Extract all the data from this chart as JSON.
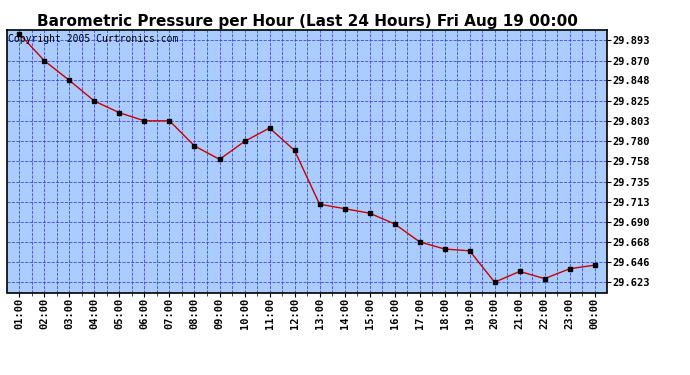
{
  "title": "Barometric Pressure per Hour (Last 24 Hours) Fri Aug 19 00:00",
  "copyright": "Copyright 2005 Curtronics.com",
  "x_labels": [
    "01:00",
    "02:00",
    "03:00",
    "04:00",
    "05:00",
    "06:00",
    "07:00",
    "08:00",
    "09:00",
    "10:00",
    "11:00",
    "12:00",
    "13:00",
    "14:00",
    "15:00",
    "16:00",
    "17:00",
    "18:00",
    "19:00",
    "20:00",
    "21:00",
    "22:00",
    "23:00",
    "00:00"
  ],
  "y_values": [
    29.9,
    29.87,
    29.848,
    29.825,
    29.812,
    29.803,
    29.803,
    29.775,
    29.76,
    29.78,
    29.795,
    29.77,
    29.71,
    29.705,
    29.7,
    29.688,
    29.668,
    29.66,
    29.658,
    29.623,
    29.635,
    29.627,
    29.638,
    29.642
  ],
  "line_color": "#cc0000",
  "marker_color": "#000000",
  "fig_bg_color": "#ffffff",
  "plot_bg_color": "#aaccff",
  "grid_color": "#3333cc",
  "border_color": "#000000",
  "title_color": "#000000",
  "y_tick_labels": [
    "29.893",
    "29.870",
    "29.848",
    "29.825",
    "29.803",
    "29.780",
    "29.758",
    "29.735",
    "29.713",
    "29.690",
    "29.668",
    "29.646",
    "29.623"
  ],
  "y_tick_values": [
    29.893,
    29.87,
    29.848,
    29.825,
    29.803,
    29.78,
    29.758,
    29.735,
    29.713,
    29.69,
    29.668,
    29.646,
    29.623
  ],
  "ylim_min": 29.6115,
  "ylim_max": 29.9043,
  "title_fontsize": 11,
  "axis_fontsize": 7.5,
  "copyright_fontsize": 7
}
